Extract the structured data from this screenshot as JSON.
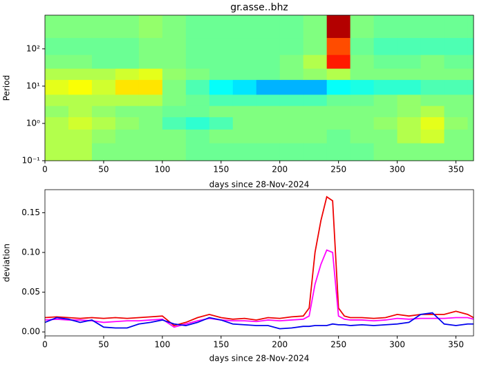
{
  "chart_data": [
    {
      "type": "heatmap",
      "title": "gr.asse..bhz",
      "xlabel": "days since 28-Nov-2024",
      "ylabel": "Period",
      "yscale": "log",
      "colormap": "jet",
      "x_edges": [
        0,
        20,
        40,
        60,
        80,
        100,
        120,
        140,
        160,
        180,
        200,
        220,
        240,
        260,
        280,
        300,
        320,
        340,
        360,
        365
      ],
      "y_edges": [
        0.1,
        0.3,
        0.7,
        1.5,
        3,
        6,
        15,
        30,
        70,
        200,
        800
      ],
      "z": [
        [
          0.55,
          0.55,
          0.5,
          0.5,
          0.5,
          0.5,
          0.48,
          0.48,
          0.48,
          0.48,
          0.48,
          0.48,
          0.48,
          0.48,
          0.5,
          0.5,
          0.5,
          0.5,
          0.5
        ],
        [
          0.55,
          0.55,
          0.52,
          0.5,
          0.5,
          0.5,
          0.48,
          0.5,
          0.5,
          0.5,
          0.5,
          0.5,
          0.48,
          0.5,
          0.5,
          0.55,
          0.58,
          0.5,
          0.5
        ],
        [
          0.55,
          0.58,
          0.55,
          0.52,
          0.5,
          0.45,
          0.42,
          0.45,
          0.5,
          0.5,
          0.5,
          0.5,
          0.5,
          0.5,
          0.52,
          0.55,
          0.6,
          0.52,
          0.5
        ],
        [
          0.52,
          0.55,
          0.52,
          0.5,
          0.5,
          0.48,
          0.48,
          0.5,
          0.5,
          0.5,
          0.5,
          0.5,
          0.5,
          0.5,
          0.5,
          0.52,
          0.55,
          0.5,
          0.5
        ],
        [
          0.55,
          0.55,
          0.55,
          0.55,
          0.55,
          0.5,
          0.48,
          0.45,
          0.45,
          0.45,
          0.45,
          0.45,
          0.48,
          0.48,
          0.5,
          0.52,
          0.5,
          0.5,
          0.5
        ],
        [
          0.6,
          0.62,
          0.58,
          0.65,
          0.65,
          0.5,
          0.45,
          0.38,
          0.35,
          0.3,
          0.3,
          0.3,
          0.38,
          0.4,
          0.42,
          0.42,
          0.45,
          0.45,
          0.45
        ],
        [
          0.55,
          0.55,
          0.55,
          0.58,
          0.6,
          0.52,
          0.5,
          0.48,
          0.48,
          0.48,
          0.5,
          0.52,
          0.55,
          0.5,
          0.5,
          0.5,
          0.5,
          0.5,
          0.5
        ],
        [
          0.5,
          0.5,
          0.48,
          0.48,
          0.5,
          0.5,
          0.48,
          0.48,
          0.48,
          0.48,
          0.5,
          0.55,
          0.85,
          0.5,
          0.48,
          0.48,
          0.5,
          0.48,
          0.48
        ],
        [
          0.48,
          0.48,
          0.48,
          0.48,
          0.5,
          0.5,
          0.48,
          0.48,
          0.48,
          0.48,
          0.48,
          0.5,
          0.8,
          0.48,
          0.45,
          0.45,
          0.45,
          0.45,
          0.45
        ],
        [
          0.5,
          0.5,
          0.5,
          0.5,
          0.52,
          0.5,
          0.48,
          0.48,
          0.48,
          0.48,
          0.48,
          0.5,
          0.95,
          0.5,
          0.48,
          0.48,
          0.48,
          0.48,
          0.48
        ]
      ],
      "xlim": [
        0,
        365
      ],
      "xticks": [
        0,
        50,
        100,
        150,
        200,
        250,
        300,
        350
      ],
      "ylim": [
        0.1,
        800
      ],
      "yticks": [
        {
          "value": 0.1,
          "label": "10⁻¹"
        },
        {
          "value": 1,
          "label": "10⁰"
        },
        {
          "value": 10,
          "label": "10¹"
        },
        {
          "value": 100,
          "label": "10²"
        }
      ]
    },
    {
      "type": "line",
      "xlabel": "days since 28-Nov-2024",
      "ylabel": "deviation",
      "x": [
        0,
        10,
        20,
        30,
        40,
        50,
        60,
        70,
        80,
        90,
        100,
        110,
        120,
        130,
        140,
        150,
        160,
        170,
        180,
        190,
        200,
        210,
        220,
        225,
        230,
        235,
        240,
        245,
        250,
        255,
        260,
        270,
        280,
        290,
        300,
        310,
        320,
        330,
        340,
        350,
        360,
        365
      ],
      "series": [
        {
          "color": "#ee0000",
          "values": [
            0.018,
            0.019,
            0.018,
            0.017,
            0.018,
            0.017,
            0.018,
            0.017,
            0.018,
            0.019,
            0.02,
            0.008,
            0.012,
            0.018,
            0.022,
            0.018,
            0.016,
            0.017,
            0.015,
            0.018,
            0.017,
            0.019,
            0.02,
            0.03,
            0.1,
            0.14,
            0.17,
            0.165,
            0.03,
            0.02,
            0.018,
            0.018,
            0.017,
            0.018,
            0.022,
            0.02,
            0.022,
            0.022,
            0.022,
            0.026,
            0.022,
            0.018
          ]
        },
        {
          "color": "#ff00ff",
          "values": [
            0.015,
            0.016,
            0.015,
            0.015,
            0.014,
            0.012,
            0.013,
            0.014,
            0.014,
            0.015,
            0.016,
            0.006,
            0.01,
            0.014,
            0.017,
            0.015,
            0.014,
            0.014,
            0.013,
            0.015,
            0.014,
            0.015,
            0.016,
            0.02,
            0.06,
            0.085,
            0.103,
            0.1,
            0.02,
            0.016,
            0.015,
            0.015,
            0.014,
            0.015,
            0.017,
            0.016,
            0.017,
            0.017,
            0.017,
            0.018,
            0.018,
            0.016
          ]
        },
        {
          "color": "#0000ee",
          "values": [
            0.012,
            0.018,
            0.016,
            0.012,
            0.015,
            0.006,
            0.005,
            0.005,
            0.01,
            0.012,
            0.015,
            0.01,
            0.008,
            0.012,
            0.018,
            0.015,
            0.01,
            0.009,
            0.008,
            0.008,
            0.004,
            0.005,
            0.007,
            0.007,
            0.008,
            0.008,
            0.008,
            0.01,
            0.009,
            0.009,
            0.008,
            0.009,
            0.008,
            0.009,
            0.01,
            0.012,
            0.022,
            0.024,
            0.01,
            0.008,
            0.01,
            0.01
          ]
        }
      ],
      "xlim": [
        0,
        365
      ],
      "xticks": [
        0,
        50,
        100,
        150,
        200,
        250,
        300,
        350
      ],
      "ylim": [
        -0.005,
        0.179
      ],
      "yticks": [
        {
          "value": 0,
          "label": "0.00"
        },
        {
          "value": 0.05,
          "label": "0.05"
        },
        {
          "value": 0.1,
          "label": "0.10"
        },
        {
          "value": 0.15,
          "label": "0.15"
        }
      ]
    }
  ]
}
